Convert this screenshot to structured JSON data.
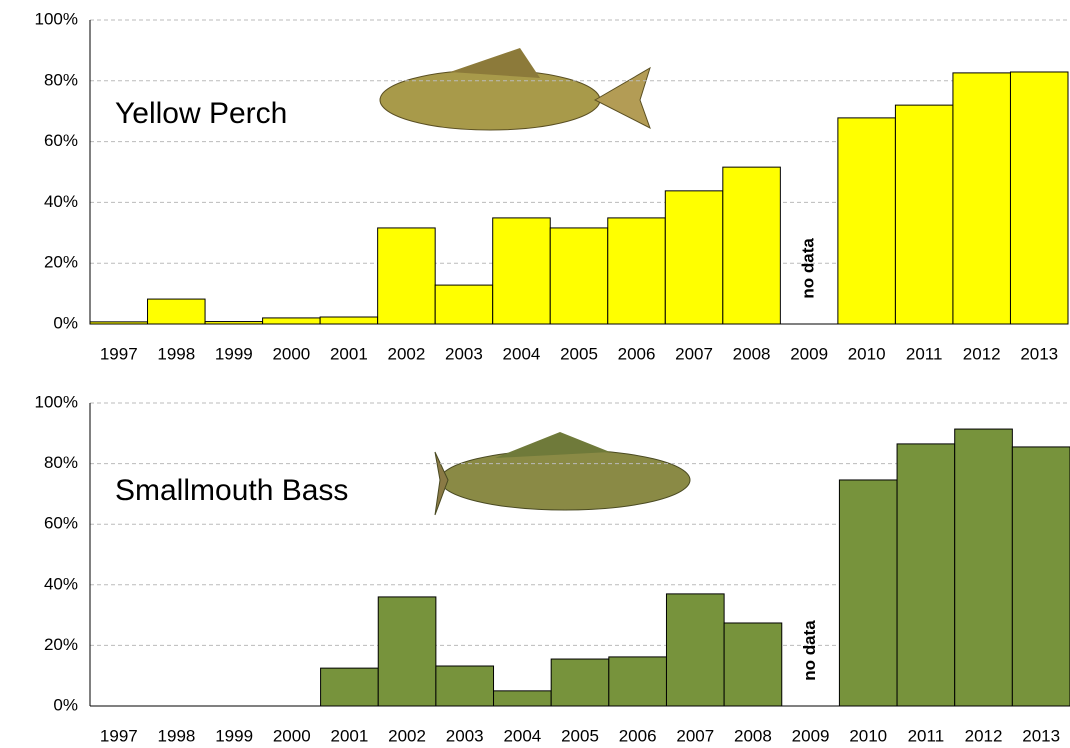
{
  "chart_data": [
    {
      "type": "bar",
      "title": "Yellow Perch",
      "annotation": "no data",
      "color": "#ffff00",
      "categories": [
        "1997",
        "1998",
        "1999",
        "2000",
        "2001",
        "2002",
        "2003",
        "2004",
        "2005",
        "2006",
        "2007",
        "2008",
        "2009",
        "2010",
        "2011",
        "2012",
        "2013"
      ],
      "values": [
        0.7,
        8.2,
        0.8,
        2,
        2.3,
        31.6,
        12.8,
        34.9,
        31.6,
        34.9,
        43.8,
        51.6,
        null,
        67.8,
        72,
        82.6,
        82.9
      ],
      "ylim": [
        0,
        100
      ],
      "yticks": [
        {
          "value": 0,
          "label": "0%"
        },
        {
          "value": 20,
          "label": "20%"
        },
        {
          "value": 40,
          "label": "40%"
        },
        {
          "value": 60,
          "label": "60%"
        },
        {
          "value": 80,
          "label": "80%"
        },
        {
          "value": 100,
          "label": "100%"
        }
      ],
      "grid": true
    },
    {
      "type": "bar",
      "title": "Smallmouth Bass",
      "annotation": "no data",
      "color": "#77933c",
      "categories": [
        "1997",
        "1998",
        "1999",
        "2000",
        "2001",
        "2002",
        "2003",
        "2004",
        "2005",
        "2006",
        "2007",
        "2008",
        "2009",
        "2010",
        "2011",
        "2012",
        "2013"
      ],
      "values": [
        0,
        0,
        0,
        0,
        12.5,
        36,
        13.2,
        5,
        15.5,
        16.2,
        37,
        27.4,
        null,
        74.6,
        86.5,
        91.4,
        85.5
      ],
      "ylim": [
        0,
        100
      ],
      "yticks": [
        {
          "value": 0,
          "label": "0%"
        },
        {
          "value": 20,
          "label": "20%"
        },
        {
          "value": 40,
          "label": "40%"
        },
        {
          "value": 60,
          "label": "60%"
        },
        {
          "value": 80,
          "label": "80%"
        },
        {
          "value": 100,
          "label": "100%"
        }
      ],
      "grid": true
    }
  ]
}
